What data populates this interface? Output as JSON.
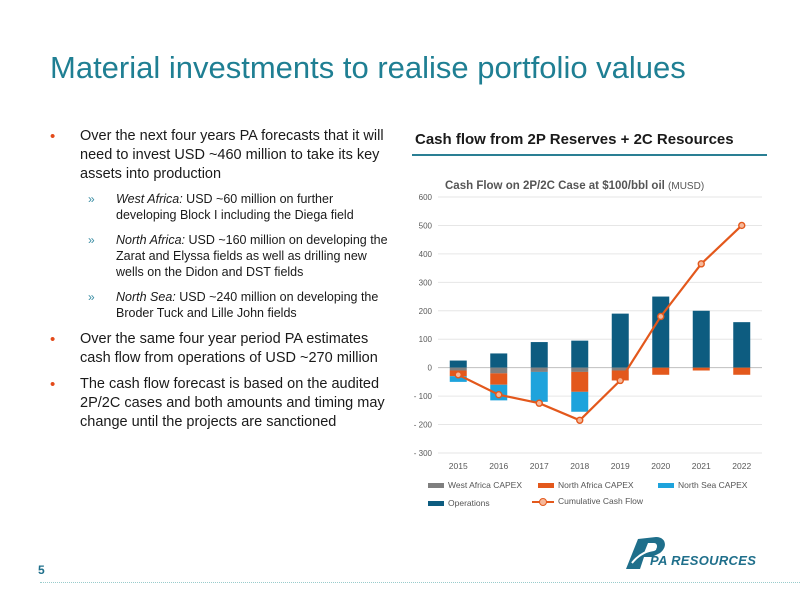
{
  "slide": {
    "title": "Material investments to realise portfolio values",
    "page_number": "5",
    "logo_text": "PA RESOURCES"
  },
  "bullets": [
    {
      "text": "Over the next four years PA forecasts that it will need to invest USD ~460 million to take its key assets into production",
      "sub": [
        {
          "lead": "West Africa:",
          "text": " USD ~60 million on further developing Block I including the Diega field"
        },
        {
          "lead": "North Africa:",
          "text": " USD ~160 million on developing the Zarat and Elyssa fields as well as drilling new wells on the Didon and DST fields"
        },
        {
          "lead": "North Sea:",
          "text": " USD ~240 million on developing the Broder Tuck and Lille John fields"
        }
      ]
    },
    {
      "text": "Over the same four year period PA estimates cash flow from operations of USD ~270 million",
      "sub": []
    },
    {
      "text": "The cash flow forecast is based on the audited 2P/2C cases and both amounts and timing may change until the projects are sanctioned",
      "sub": []
    }
  ],
  "chart_section_title": "Cash flow from 2P Reserves + 2C Resources",
  "chart_data": {
    "type": "bar",
    "title": "Cash Flow on 2P/2C Case at $100/bbl oil",
    "title_unit": "(MUSD)",
    "categories": [
      "2015",
      "2016",
      "2017",
      "2018",
      "2019",
      "2020",
      "2021",
      "2022"
    ],
    "ylim": [
      -300,
      600
    ],
    "yticks": [
      600,
      500,
      400,
      300,
      200,
      100,
      0,
      -100,
      -200,
      -300
    ],
    "ytick_labels": [
      "600",
      "500",
      "400",
      "300",
      "200",
      "100",
      "0",
      "- 100",
      "- 200",
      "- 300"
    ],
    "series": [
      {
        "name": "Operations",
        "kind": "bar",
        "color": "#0d5c80",
        "values": [
          25,
          50,
          90,
          95,
          190,
          250,
          200,
          160
        ]
      },
      {
        "name": "West Africa CAPEX",
        "kind": "bar",
        "color": "#7f7f7f",
        "values": [
          -10,
          -20,
          -15,
          -15,
          -10,
          0,
          0,
          0
        ]
      },
      {
        "name": "North Africa CAPEX",
        "kind": "bar",
        "color": "#e3581c",
        "values": [
          -20,
          -40,
          0,
          -70,
          -35,
          -25,
          -10,
          -25
        ]
      },
      {
        "name": "North Sea CAPEX",
        "kind": "bar",
        "color": "#1ea3dc",
        "values": [
          -20,
          -55,
          -105,
          -70,
          0,
          0,
          0,
          0
        ]
      },
      {
        "name": "Cumulative Cash Flow",
        "kind": "line",
        "color": "#e3581c",
        "values": [
          -25,
          -95,
          -125,
          -185,
          -45,
          180,
          365,
          500
        ]
      }
    ],
    "legend": [
      "West Africa CAPEX",
      "North Africa CAPEX",
      "North Sea CAPEX",
      "Operations",
      "Cumulative Cash Flow"
    ],
    "legend_position": "bottom"
  }
}
